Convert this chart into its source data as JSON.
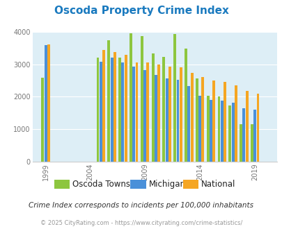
{
  "title": "Oscoda Property Crime Index",
  "title_color": "#1a7abf",
  "subtitle": "Crime Index corresponds to incidents per 100,000 inhabitants",
  "footer": "© 2025 CityRating.com - https://www.cityrating.com/crime-statistics/",
  "years": [
    2000,
    2001,
    2005,
    2006,
    2007,
    2008,
    2009,
    2010,
    2011,
    2012,
    2013,
    2014,
    2015,
    2016,
    2017,
    2018,
    2019,
    2020
  ],
  "oscoda": [
    2580,
    null,
    3200,
    3750,
    3210,
    3960,
    3880,
    3330,
    3230,
    3940,
    3500,
    2560,
    2020,
    2000,
    1720,
    1160,
    1160,
    null
  ],
  "michigan": [
    3600,
    null,
    3090,
    3220,
    3060,
    2940,
    2830,
    2680,
    2560,
    2530,
    2330,
    2040,
    1900,
    1880,
    1820,
    1650,
    1610,
    null
  ],
  "national": [
    3620,
    null,
    3450,
    3380,
    3300,
    3060,
    3050,
    2990,
    2940,
    2900,
    2730,
    2610,
    2510,
    2460,
    2360,
    2190,
    2100,
    null
  ],
  "colors": {
    "oscoda": "#8dc63f",
    "michigan": "#4a90d9",
    "national": "#f5a623"
  },
  "bar_width": 0.27,
  "ylim": [
    0,
    4000
  ],
  "yticks": [
    0,
    1000,
    2000,
    3000,
    4000
  ],
  "xtick_map": {
    "2000": "1999",
    "2004": "2004",
    "2009": "2009",
    "2014": "2014",
    "2019": "2019"
  },
  "background_color": "#ddeef6",
  "fig_background": "#ffffff",
  "legend_labels": [
    "Oscoda Township",
    "Michigan",
    "National"
  ],
  "legend_colors": [
    "#8dc63f",
    "#4a90d9",
    "#f5a623"
  ]
}
